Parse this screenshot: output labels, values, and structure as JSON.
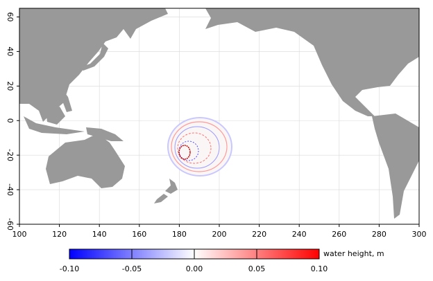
{
  "chart_data": {
    "type": "map",
    "xlim": [
      100,
      300
    ],
    "xticks": [
      100,
      120,
      140,
      160,
      180,
      200,
      220,
      240,
      260,
      280,
      300
    ],
    "ylim": [
      -60,
      65
    ],
    "yticks": [
      -60,
      -40,
      -20,
      0,
      20,
      40,
      60
    ],
    "grid": true,
    "colorbar": {
      "label": "water height, m",
      "lim": [
        -0.1,
        0.1
      ],
      "ticks": [
        {
          "value": -0.1,
          "label": "-0.10"
        },
        {
          "value": -0.05,
          "label": "-0.05"
        },
        {
          "value": 0,
          "label": "0.00"
        },
        {
          "value": 0.05,
          "label": "0.05"
        },
        {
          "value": 0.1,
          "label": "0.10"
        }
      ],
      "colors": [
        "#0000ff",
        "#ffffff",
        "#ff0000"
      ]
    }
  }
}
